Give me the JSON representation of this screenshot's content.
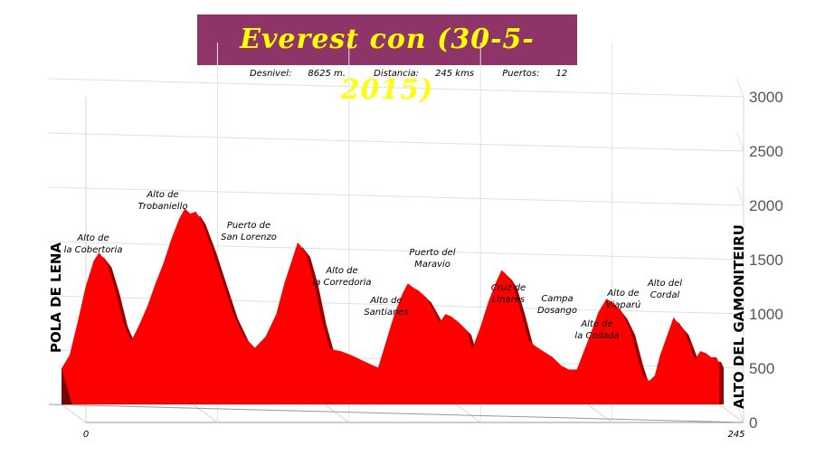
{
  "title": "Everest con (30-5-2015)",
  "stats": {
    "desnivel_label": "Desnivel:",
    "desnivel_value": "8625 m.",
    "distancia_label": "Distancia:",
    "distancia_value": "245 kms",
    "puertos_label": "Puertos:",
    "puertos_value": "12"
  },
  "colors": {
    "fill": "#ff0000",
    "dark": "#990000",
    "title_bg": "#8e3468",
    "title_fg": "#ffff00"
  },
  "chart_data": {
    "type": "area",
    "title": "Everest con (30-5-2015)",
    "xlabel": "",
    "ylabel": "",
    "xlim": [
      0,
      245
    ],
    "ylim": [
      0,
      3000
    ],
    "yticks": [
      0,
      500,
      1000,
      1500,
      2000,
      2500,
      3000
    ],
    "xtick_labels": [
      "0",
      "245"
    ],
    "grid": true,
    "start_label": "POLA DE LENA",
    "end_label": "ALTO DEL GAMONITEIRU",
    "profile": [
      [
        0,
        350
      ],
      [
        3,
        480
      ],
      [
        6,
        800
      ],
      [
        9,
        1150
      ],
      [
        12,
        1400
      ],
      [
        14,
        1480
      ],
      [
        17,
        1380
      ],
      [
        20,
        1120
      ],
      [
        23,
        800
      ],
      [
        26,
        620
      ],
      [
        29,
        780
      ],
      [
        32,
        960
      ],
      [
        35,
        1180
      ],
      [
        38,
        1380
      ],
      [
        41,
        1620
      ],
      [
        44,
        1820
      ],
      [
        46,
        1910
      ],
      [
        48,
        1860
      ],
      [
        50,
        1880
      ],
      [
        52,
        1800
      ],
      [
        56,
        1520
      ],
      [
        60,
        1200
      ],
      [
        64,
        880
      ],
      [
        68,
        660
      ],
      [
        72,
        550
      ],
      [
        76,
        660
      ],
      [
        80,
        880
      ],
      [
        83,
        1180
      ],
      [
        86,
        1420
      ],
      [
        88,
        1580
      ],
      [
        91,
        1480
      ],
      [
        94,
        1200
      ],
      [
        97,
        820
      ],
      [
        100,
        540
      ],
      [
        104,
        520
      ],
      [
        108,
        480
      ],
      [
        112,
        430
      ],
      [
        116,
        380
      ],
      [
        118,
        360
      ],
      [
        121,
        620
      ],
      [
        124,
        880
      ],
      [
        127,
        1080
      ],
      [
        129,
        1180
      ],
      [
        131,
        1140
      ],
      [
        133,
        1110
      ],
      [
        136,
        1040
      ],
      [
        139,
        900
      ],
      [
        141,
        800
      ],
      [
        143,
        880
      ],
      [
        145,
        860
      ],
      [
        148,
        800
      ],
      [
        151,
        720
      ],
      [
        153,
        540
      ],
      [
        156,
        750
      ],
      [
        159,
        1000
      ],
      [
        162,
        1200
      ],
      [
        164,
        1310
      ],
      [
        166,
        1260
      ],
      [
        168,
        1180
      ],
      [
        171,
        920
      ],
      [
        174,
        620
      ],
      [
        177,
        560
      ],
      [
        180,
        510
      ],
      [
        183,
        460
      ],
      [
        186,
        380
      ],
      [
        189,
        340
      ],
      [
        192,
        340
      ],
      [
        194,
        480
      ],
      [
        197,
        680
      ],
      [
        200,
        900
      ],
      [
        203,
        1030
      ],
      [
        206,
        980
      ],
      [
        209,
        880
      ],
      [
        212,
        720
      ],
      [
        215,
        420
      ],
      [
        217,
        260
      ],
      [
        219,
        230
      ],
      [
        221,
        280
      ],
      [
        223,
        480
      ],
      [
        226,
        700
      ],
      [
        228,
        850
      ],
      [
        230,
        780
      ],
      [
        232,
        720
      ],
      [
        234,
        580
      ],
      [
        236,
        440
      ],
      [
        238,
        520
      ],
      [
        240,
        500
      ],
      [
        242,
        460
      ],
      [
        244,
        460
      ],
      [
        245,
        400
      ]
    ],
    "annotations": [
      {
        "text": "Alto de la Cobertoria",
        "x": 14,
        "y": 1480
      },
      {
        "text": "Alto de Trobaniello",
        "x": 47,
        "y": 1910
      },
      {
        "text": "Puerto de San Lorenzo",
        "x": 88,
        "y": 1580
      },
      {
        "text": "Alto de la Corredoria",
        "x": 129,
        "y": 1180
      },
      {
        "text": "Alto de Santianes",
        "x": 142,
        "y": 880
      },
      {
        "text": "Puerto del Maravio",
        "x": 164,
        "y": 1310
      },
      {
        "text": "Cruz de Linares",
        "x": 203,
        "y": 1030
      },
      {
        "text": "Campa Dosango",
        "x": 228,
        "y": 850
      },
      {
        "text": "Alto de la Collada",
        "x": 236,
        "y": 520
      },
      {
        "text": "Alto de Viaparú",
        "x": 240,
        "y": 500
      },
      {
        "text": "Alto del Cordal",
        "x": 244,
        "y": 460
      },
      {
        "text": "",
        "x": 245,
        "y": 400
      }
    ]
  }
}
